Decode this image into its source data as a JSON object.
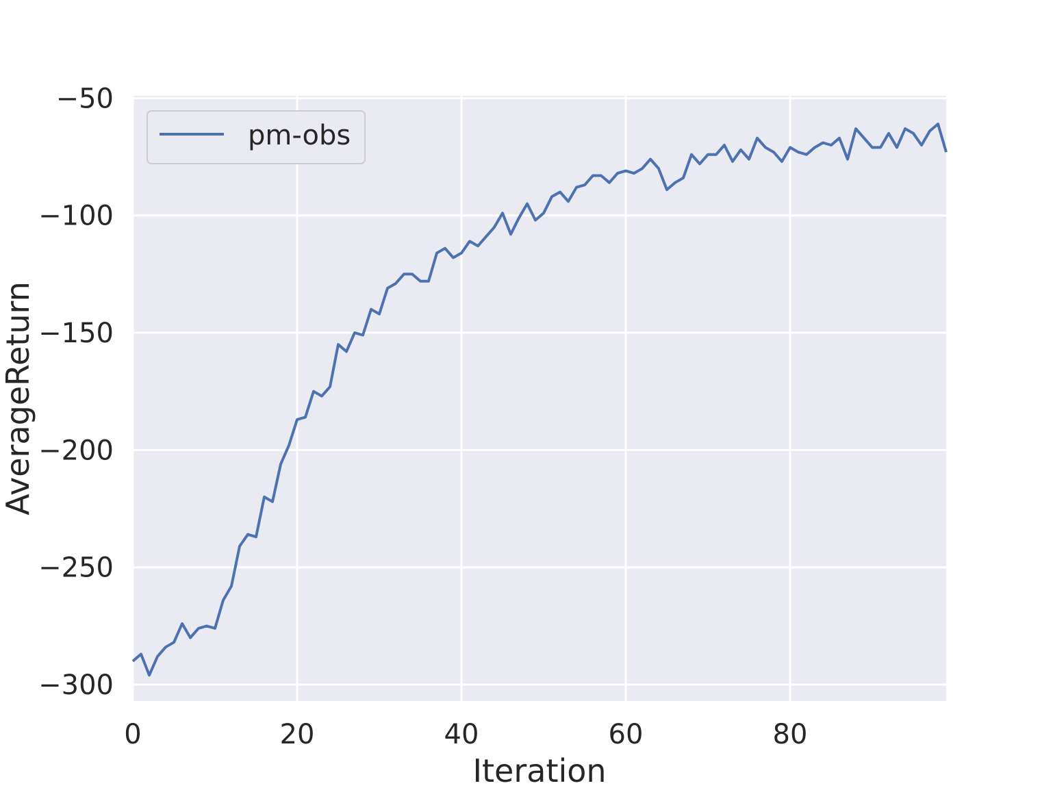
{
  "chart_data": {
    "type": "line",
    "xlabel": "Iteration",
    "ylabel": "AverageReturn",
    "xlim": [
      0,
      99
    ],
    "ylim": [
      -307,
      -49
    ],
    "xticks": [
      0,
      20,
      40,
      60,
      80
    ],
    "yticks": [
      -50,
      -100,
      -150,
      -200,
      -250,
      -300
    ],
    "xtick_labels": [
      "0",
      "20",
      "40",
      "60",
      "80"
    ],
    "ytick_labels": [
      "−50",
      "−100",
      "−150",
      "−200",
      "−250",
      "−300"
    ],
    "grid": true,
    "legend_position": "top-left",
    "colors": {
      "background": "#eaeaf2",
      "grid": "#ffffff",
      "line": "#4c72b0"
    },
    "series": [
      {
        "name": "pm-obs",
        "x": [
          0,
          1,
          2,
          3,
          4,
          5,
          6,
          7,
          8,
          9,
          10,
          11,
          12,
          13,
          14,
          15,
          16,
          17,
          18,
          19,
          20,
          21,
          22,
          23,
          24,
          25,
          26,
          27,
          28,
          29,
          30,
          31,
          32,
          33,
          34,
          35,
          36,
          37,
          38,
          39,
          40,
          41,
          42,
          43,
          44,
          45,
          46,
          47,
          48,
          49,
          50,
          51,
          52,
          53,
          54,
          55,
          56,
          57,
          58,
          59,
          60,
          61,
          62,
          63,
          64,
          65,
          66,
          67,
          68,
          69,
          70,
          71,
          72,
          73,
          74,
          75,
          76,
          77,
          78,
          79,
          80,
          81,
          82,
          83,
          84,
          85,
          86,
          87,
          88,
          89,
          90,
          91,
          92,
          93,
          94,
          95,
          96,
          97,
          98,
          99
        ],
        "values": [
          -290,
          -287,
          -296,
          -288,
          -284,
          -282,
          -274,
          -280,
          -276,
          -275,
          -276,
          -264,
          -258,
          -241,
          -236,
          -237,
          -220,
          -222,
          -206,
          -198,
          -187,
          -186,
          -175,
          -177,
          -173,
          -155,
          -158,
          -150,
          -151,
          -140,
          -142,
          -131,
          -129,
          -125,
          -125,
          -128,
          -128,
          -116,
          -114,
          -118,
          -116,
          -111,
          -113,
          -109,
          -105,
          -99,
          -108,
          -101,
          -95,
          -102,
          -99,
          -92,
          -90,
          -94,
          -88,
          -87,
          -83,
          -83,
          -86,
          -82,
          -81,
          -82,
          -80,
          -76,
          -80,
          -89,
          -86,
          -84,
          -74,
          -78,
          -74,
          -74,
          -70,
          -77,
          -72,
          -76,
          -67,
          -71,
          -73,
          -77,
          -71,
          -73,
          -74,
          -71,
          -69,
          -70,
          -67,
          -76,
          -63,
          -67,
          -71,
          -71,
          -65,
          -71,
          -63,
          -65,
          -70,
          -64,
          -61,
          -73
        ]
      }
    ]
  }
}
